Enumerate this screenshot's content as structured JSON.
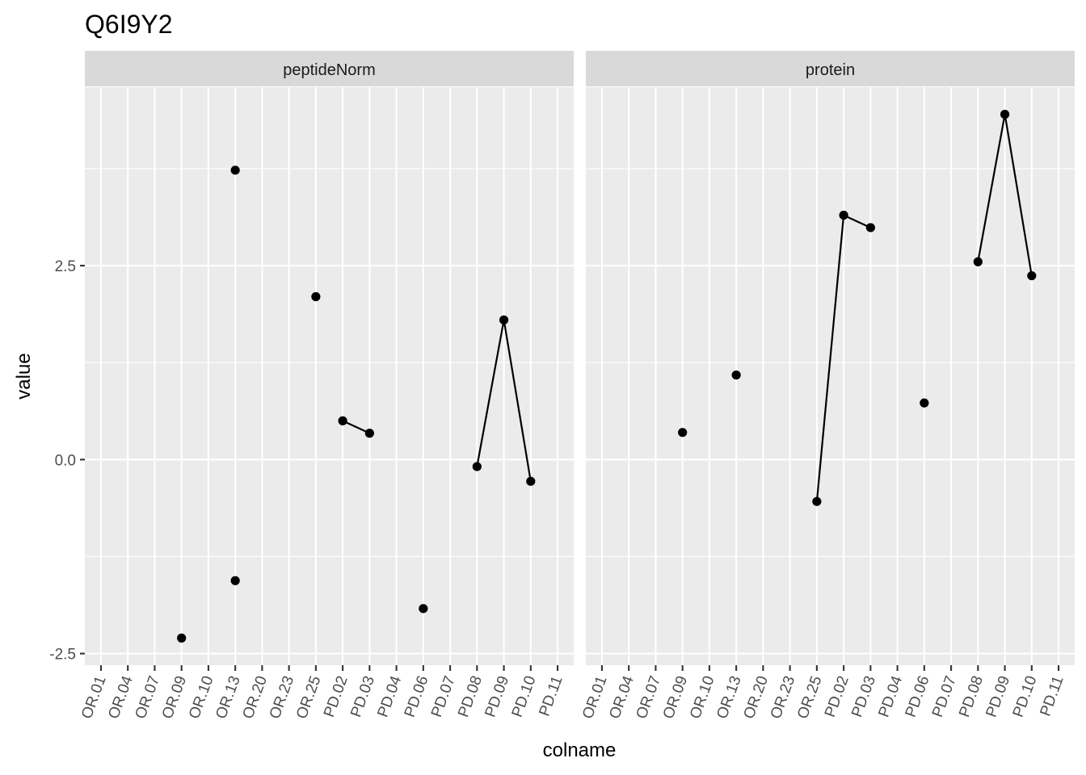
{
  "chart_data": {
    "type": "scatter",
    "title": "Q6I9Y2",
    "xlabel": "colname",
    "ylabel": "value",
    "categories": [
      "OR.01",
      "OR.04",
      "OR.07",
      "OR.09",
      "OR.10",
      "OR.13",
      "OR.20",
      "OR.23",
      "OR.25",
      "PD.02",
      "PD.03",
      "PD.04",
      "PD.06",
      "PD.07",
      "PD.08",
      "PD.09",
      "PD.10",
      "PD.11"
    ],
    "ylim": [
      -2.65,
      4.8
    ],
    "yticks": [
      -2.5,
      0.0,
      2.5
    ],
    "ytick_labels": [
      "-2.5",
      "0.0",
      "2.5"
    ],
    "grid": true,
    "legend": "none",
    "panels": [
      {
        "name": "peptideNorm",
        "points": [
          {
            "x": "OR.09",
            "y": -2.3
          },
          {
            "x": "OR.13",
            "y": 3.73
          },
          {
            "x": "OR.13",
            "y": -1.56
          },
          {
            "x": "OR.25",
            "y": 2.1
          },
          {
            "x": "PD.02",
            "y": 0.5
          },
          {
            "x": "PD.03",
            "y": 0.34
          },
          {
            "x": "PD.06",
            "y": -1.92
          },
          {
            "x": "PD.08",
            "y": -0.09
          },
          {
            "x": "PD.09",
            "y": 1.8
          },
          {
            "x": "PD.10",
            "y": -0.28
          }
        ],
        "lines": [
          [
            {
              "x": "PD.02",
              "y": 0.5
            },
            {
              "x": "PD.03",
              "y": 0.34
            }
          ],
          [
            {
              "x": "PD.08",
              "y": -0.09
            },
            {
              "x": "PD.09",
              "y": 1.8
            },
            {
              "x": "PD.10",
              "y": -0.28
            }
          ]
        ]
      },
      {
        "name": "protein",
        "points": [
          {
            "x": "OR.09",
            "y": 0.35
          },
          {
            "x": "OR.13",
            "y": 1.09
          },
          {
            "x": "OR.25",
            "y": -0.54
          },
          {
            "x": "PD.02",
            "y": 3.15
          },
          {
            "x": "PD.03",
            "y": 2.99
          },
          {
            "x": "PD.06",
            "y": 0.73
          },
          {
            "x": "PD.08",
            "y": 2.55
          },
          {
            "x": "PD.09",
            "y": 4.45
          },
          {
            "x": "PD.10",
            "y": 2.37
          }
        ],
        "lines": [
          [
            {
              "x": "OR.25",
              "y": -0.54
            },
            {
              "x": "PD.02",
              "y": 3.15
            },
            {
              "x": "PD.03",
              "y": 2.99
            }
          ],
          [
            {
              "x": "PD.08",
              "y": 2.55
            },
            {
              "x": "PD.09",
              "y": 4.45
            },
            {
              "x": "PD.10",
              "y": 2.37
            }
          ]
        ]
      }
    ],
    "colors": {
      "panel_background": "#ebebeb",
      "strip_background": "#d9d9d9",
      "grid": "#ffffff",
      "points": "#000000",
      "lines": "#000000"
    }
  }
}
